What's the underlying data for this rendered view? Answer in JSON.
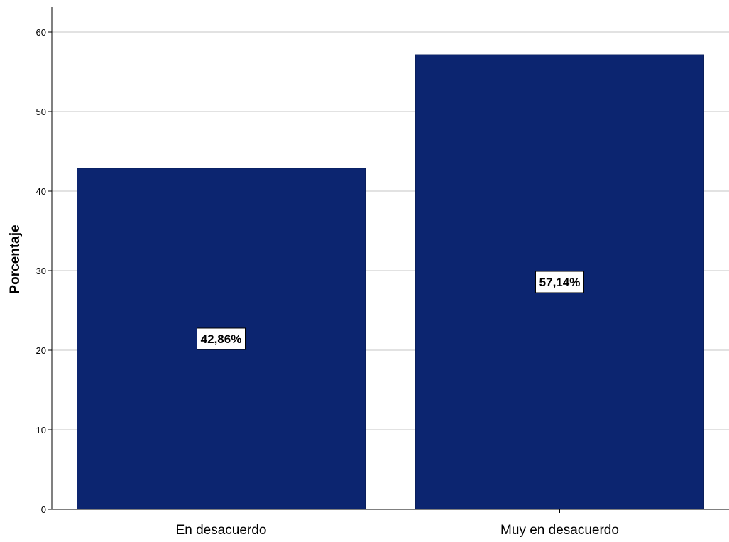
{
  "chart_data": {
    "type": "bar",
    "title": "",
    "xlabel": "",
    "ylabel": "Porcentaje",
    "ylim": [
      0,
      60
    ],
    "yticks": [
      0,
      10,
      20,
      30,
      40,
      50,
      60
    ],
    "grid": true,
    "legend": "none",
    "categories": [
      "En desacuerdo",
      "Muy en desacuerdo"
    ],
    "values": [
      42.86,
      57.14
    ],
    "data_labels": [
      "42,86%",
      "57,14%"
    ],
    "colors": {
      "bar": "#0c2570",
      "grid": "#d9d9d9",
      "axis": "#000000"
    }
  }
}
